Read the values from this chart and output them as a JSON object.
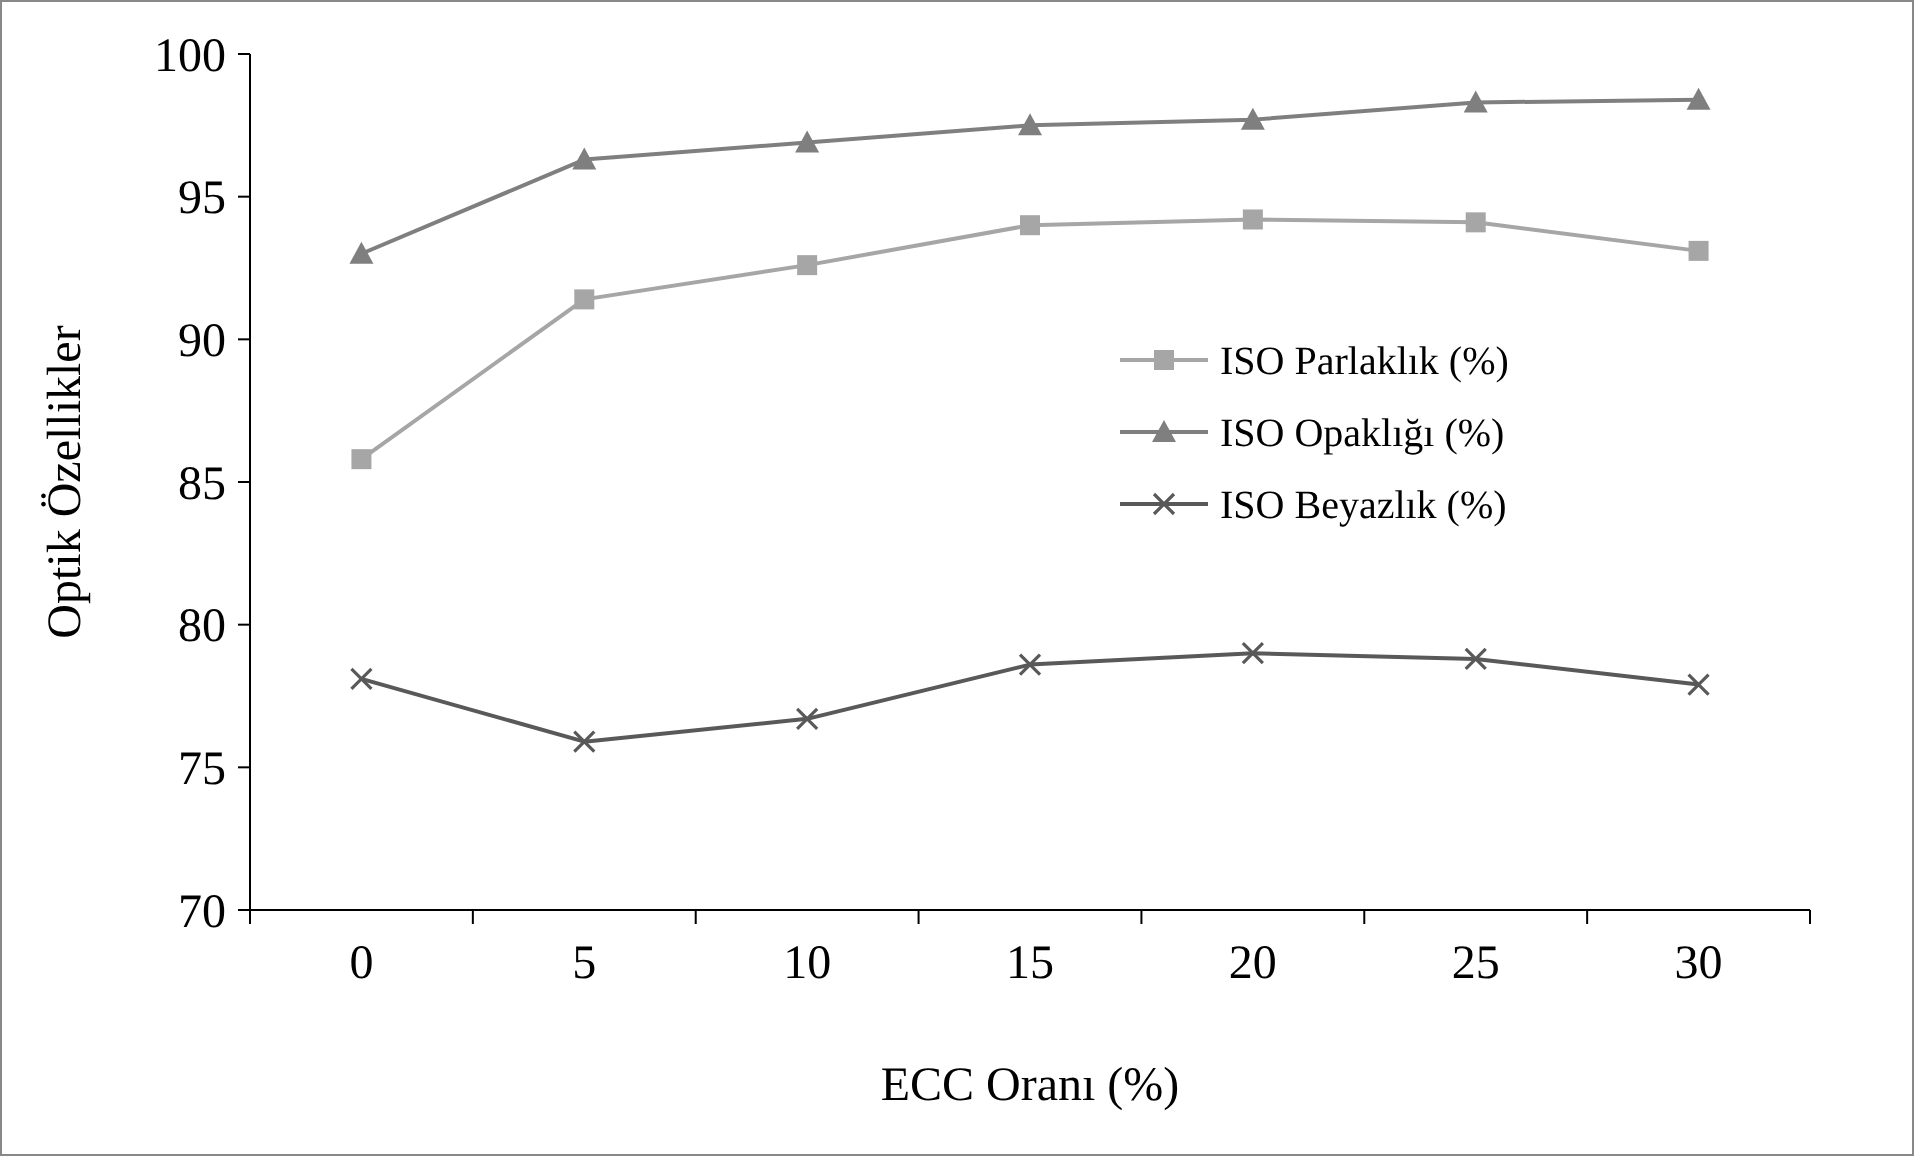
{
  "chart_data": {
    "type": "line",
    "xlabel": "ECC Oranı (%)",
    "ylabel": "Optik Özellikler",
    "categories": [
      "0",
      "5",
      "10",
      "15",
      "20",
      "25",
      "30"
    ],
    "ylim": [
      70,
      100
    ],
    "yticks": [
      70,
      75,
      80,
      85,
      90,
      95,
      100
    ],
    "grid": false,
    "legend": "right",
    "series": [
      {
        "name": "ISO Parlaklık (%)",
        "color": "#a6a6a6",
        "marker": "square",
        "values": [
          85.8,
          91.4,
          92.6,
          94.0,
          94.2,
          94.1,
          93.1
        ]
      },
      {
        "name": "ISO Opaklığı (%)",
        "color": "#7f7f7f",
        "marker": "triangle",
        "values": [
          93.0,
          96.3,
          96.9,
          97.5,
          97.7,
          98.3,
          98.4
        ]
      },
      {
        "name": "ISO Beyazlık (%)",
        "color": "#595959",
        "marker": "cross",
        "values": [
          78.1,
          75.9,
          76.7,
          78.6,
          79.0,
          78.8,
          77.9
        ]
      }
    ]
  }
}
